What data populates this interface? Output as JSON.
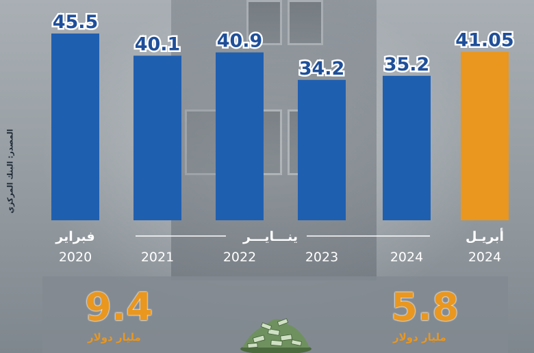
{
  "source_note": "المصدر: البنك المركزي",
  "chart_data": {
    "type": "bar",
    "values": [
      45.5,
      40.1,
      40.9,
      34.2,
      35.2,
      41.05
    ],
    "value_labels": [
      "45.5",
      "40.1",
      "40.9",
      "34.2",
      "35.2",
      "41.05"
    ],
    "years": [
      "2020",
      "2021",
      "2022",
      "2023",
      "2024",
      "2024"
    ],
    "month_labels": {
      "first": "فبراير",
      "middle_group": "ينـــايـــر",
      "last": "أبريـل"
    },
    "highlight_index": 5,
    "ylim": [
      0,
      50
    ],
    "colors": {
      "bar": "#1f5fb0",
      "highlight": "#e9971f",
      "label": "#1f4f99"
    }
  },
  "stats": {
    "left": {
      "value": "9.4",
      "unit": "مليار دولار"
    },
    "right": {
      "value": "5.8",
      "unit": "مليار دولار"
    }
  },
  "icons": {
    "money": "money-pile-icon"
  }
}
